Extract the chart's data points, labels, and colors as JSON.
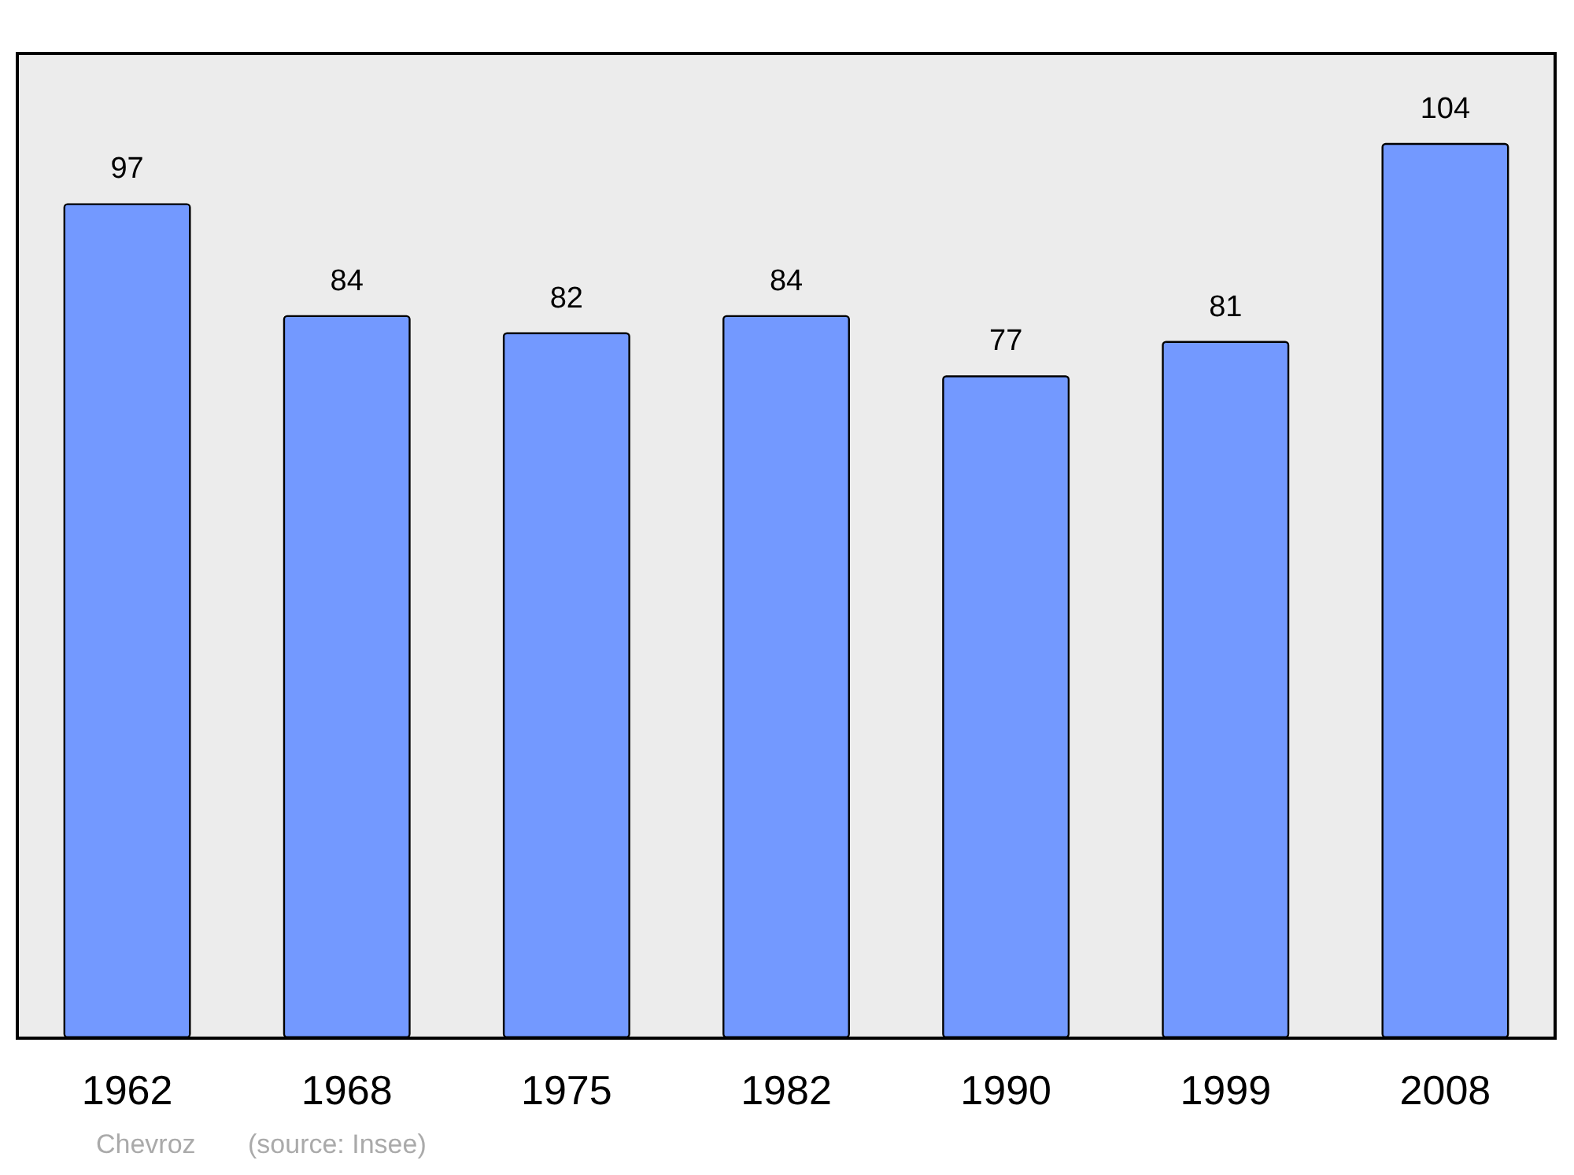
{
  "chart_data": {
    "type": "bar",
    "categories": [
      "1962",
      "1968",
      "1975",
      "1982",
      "1990",
      "1999",
      "2008"
    ],
    "values": [
      97,
      84,
      82,
      84,
      77,
      81,
      104
    ],
    "color": "#7399ff",
    "data_labels": true,
    "annotations": [
      "Chevroz",
      "(source: Insee)"
    ]
  }
}
